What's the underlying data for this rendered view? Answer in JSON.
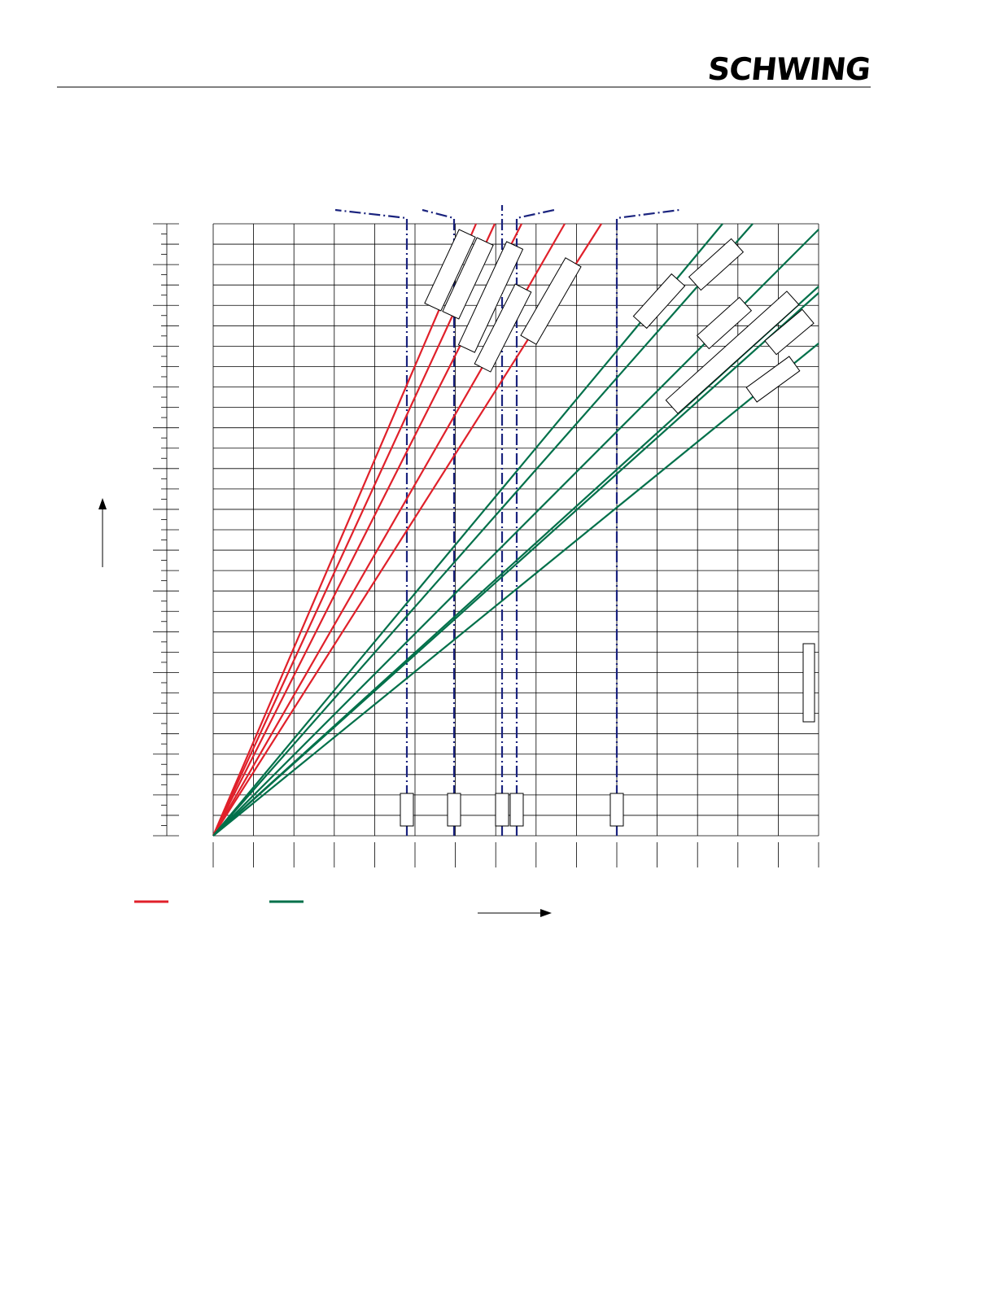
{
  "header": {
    "logo": "SCHWING"
  }
}
